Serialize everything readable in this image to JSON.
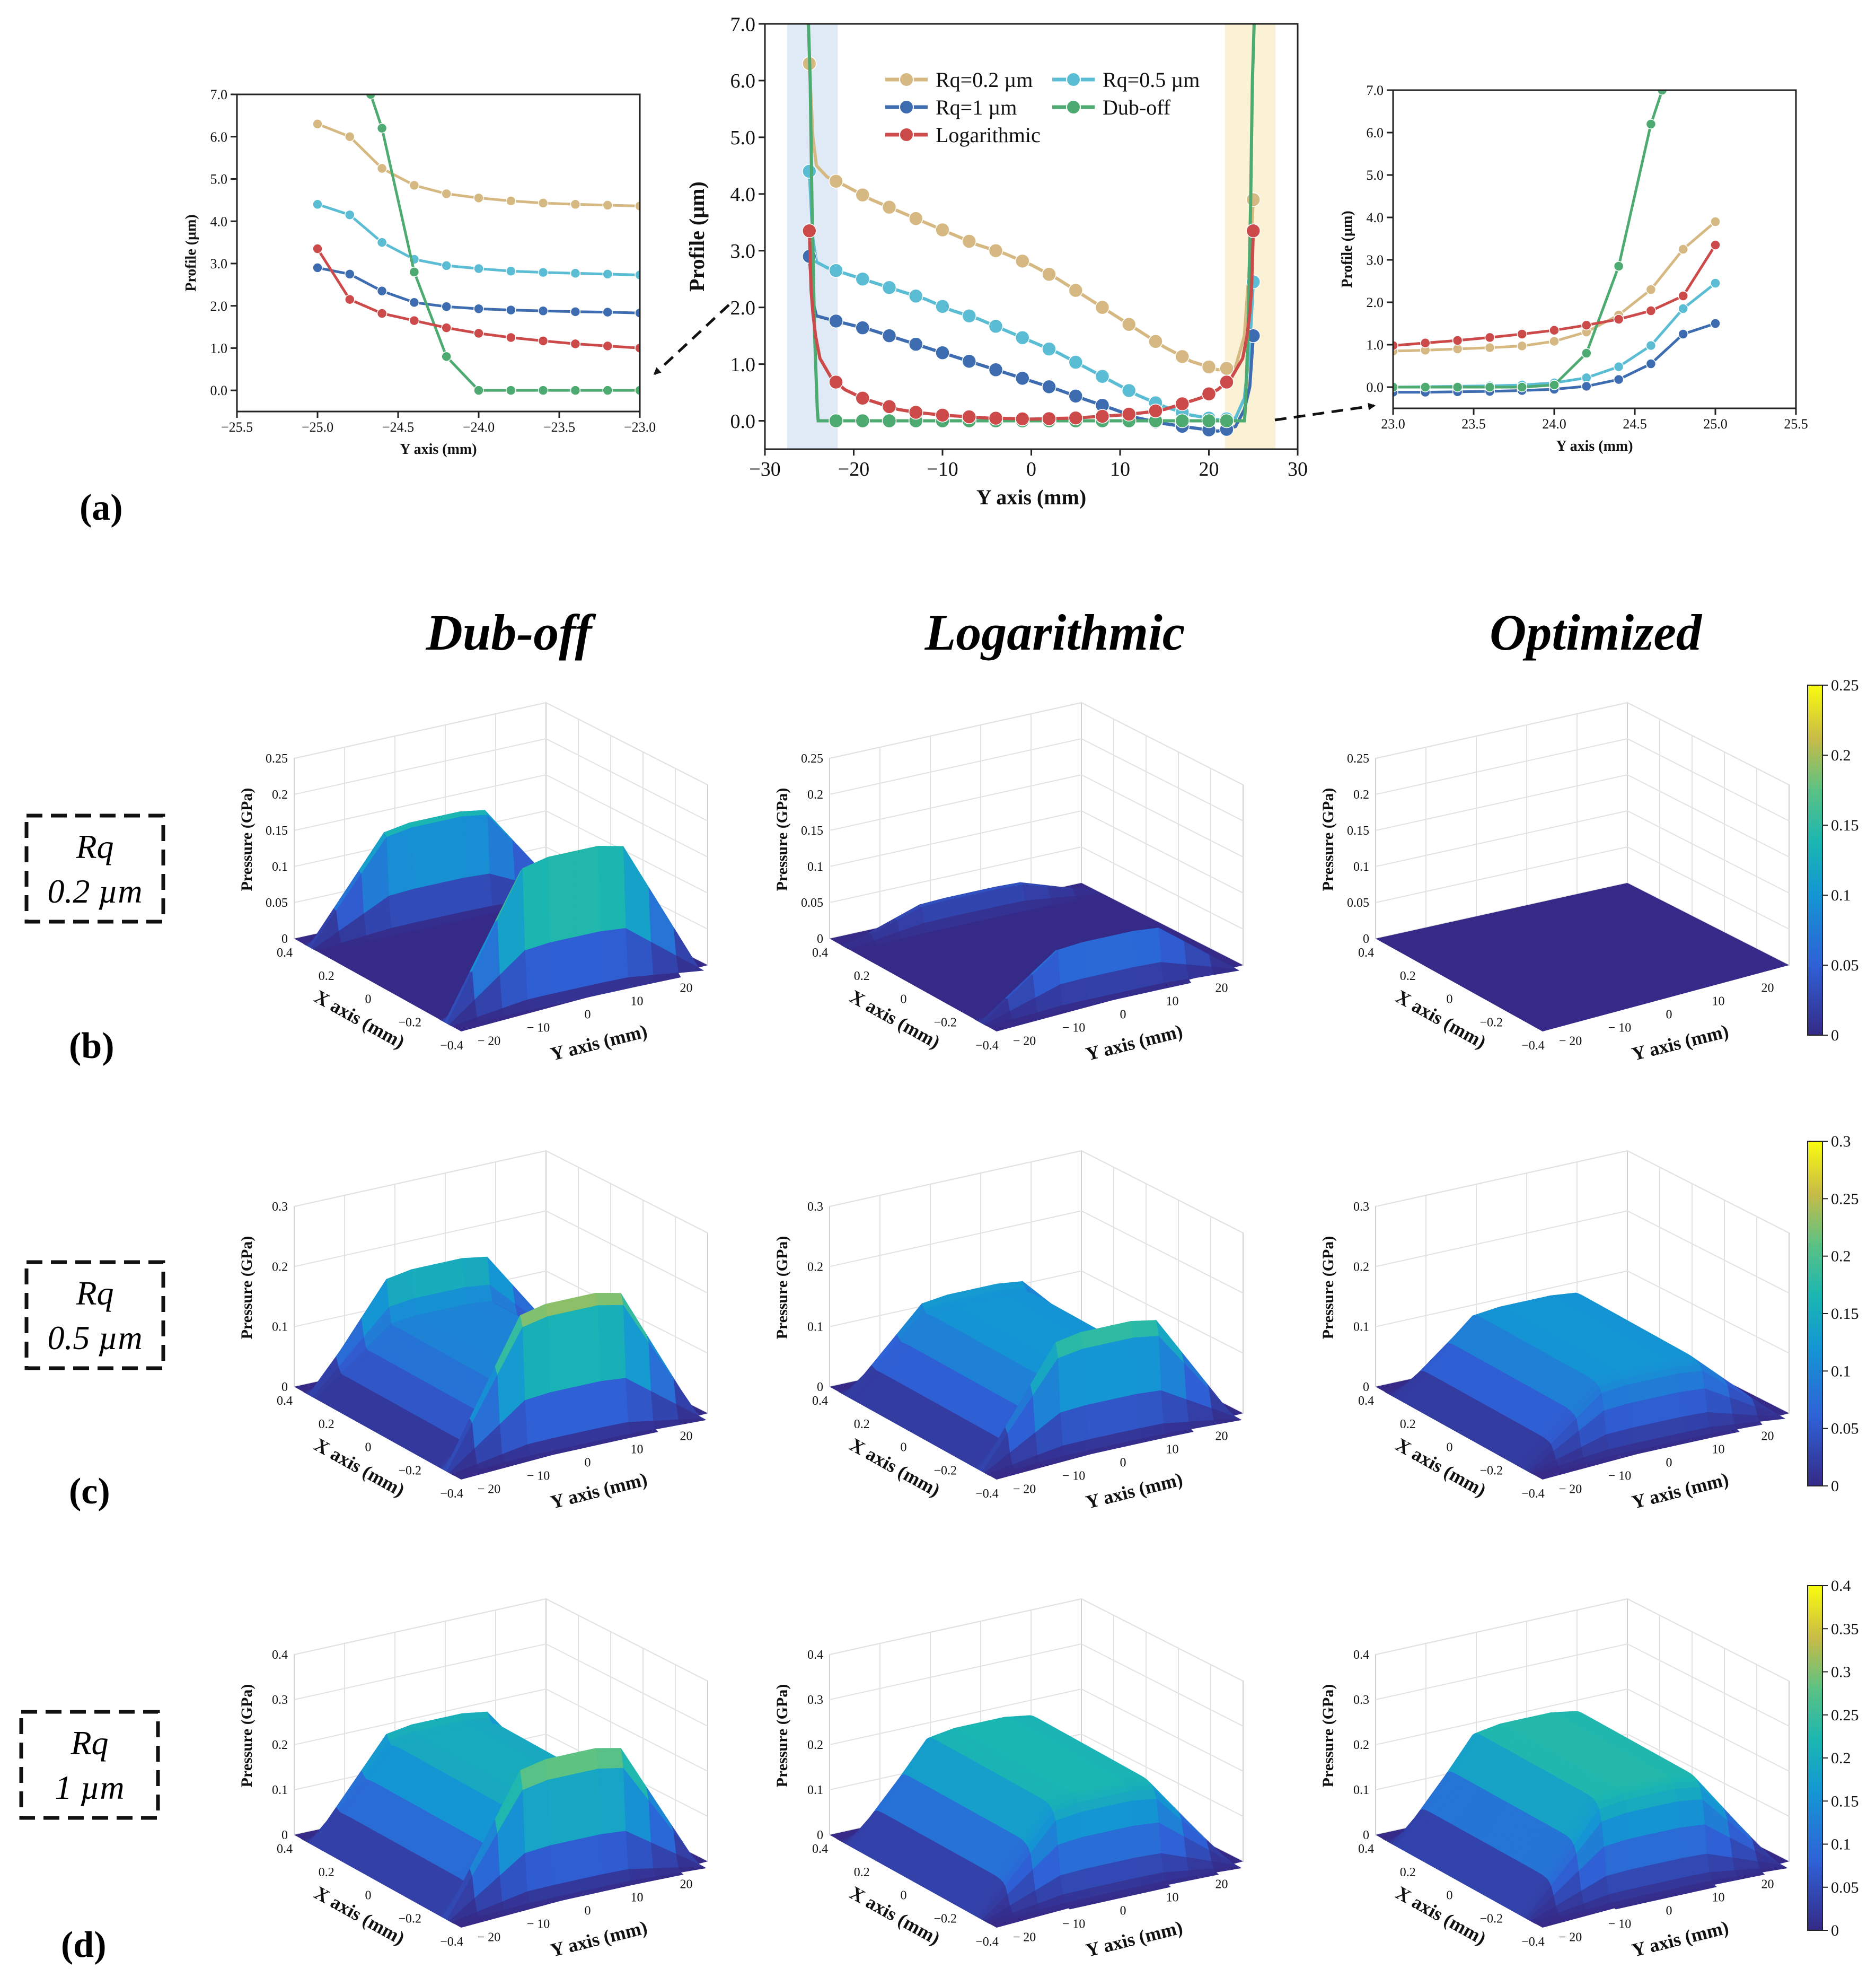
{
  "figure": {
    "panel_labels": [
      "(a)",
      "(b)",
      "(c)",
      "(d)"
    ],
    "column_titles": [
      "Dub-off",
      "Logarithmic",
      "Optimized"
    ],
    "row_labels": [
      {
        "line1": "Rq",
        "line2": "0.2 µm"
      },
      {
        "line1": "Rq",
        "line2": "0.5 µm"
      },
      {
        "line1": "Rq",
        "line2": "1 µm"
      }
    ]
  },
  "chart_data": [
    {
      "id": "main",
      "type": "line",
      "xlabel": "Y axis (mm)",
      "ylabel": "Profile (µm)",
      "xlim": [
        -30,
        30
      ],
      "ylim": [
        -0.5,
        7.0
      ],
      "xticks": [
        -30,
        -20,
        -10,
        0,
        10,
        20,
        30
      ],
      "xticklabels": [
        "−30",
        "−20",
        "−10",
        "0",
        "10",
        "20",
        "30"
      ],
      "yticks": [
        0,
        1,
        2,
        3,
        4,
        5,
        6,
        7
      ],
      "yticklabels": [
        "0.0",
        "1.0",
        "2.0",
        "3.0",
        "4.0",
        "5.0",
        "6.0",
        "7.0"
      ],
      "highlight_ranges": [
        {
          "x": [
            -27.5,
            -21.8
          ],
          "color": "#dce8f5"
        },
        {
          "x": [
            21.8,
            27.5
          ],
          "color": "#fbefd0"
        }
      ],
      "legend": [
        {
          "name": "Rq=0.2 µm",
          "color": "#d6b982"
        },
        {
          "name": "Rq=0.5 µm",
          "color": "#5bbdd4"
        },
        {
          "name": "Rq=1 µm",
          "color": "#3d6db0"
        },
        {
          "name": "Dub-off",
          "color": "#4daa70"
        },
        {
          "name": "Logarithmic",
          "color": "#cc4a4a"
        }
      ],
      "series": [
        {
          "name": "Rq=0.2 µm",
          "color": "#d6b982",
          "x": [
            -25,
            -24.6,
            -24.2,
            -23,
            -21,
            -18,
            -15,
            -12,
            -9,
            -6,
            -3,
            0,
            3,
            6,
            9,
            12,
            15,
            18,
            21,
            23,
            24,
            24.6,
            25
          ],
          "y": [
            6.3,
            5.0,
            4.5,
            4.3,
            4.15,
            3.9,
            3.7,
            3.5,
            3.3,
            3.1,
            2.95,
            2.75,
            2.5,
            2.2,
            1.9,
            1.6,
            1.3,
            1.05,
            0.9,
            0.95,
            1.5,
            2.8,
            3.9
          ],
          "markers_x": [
            -25,
            -22,
            -19,
            -16,
            -13,
            -10,
            -7,
            -4,
            -1,
            2,
            5,
            8,
            11,
            14,
            17,
            20,
            22,
            25
          ]
        },
        {
          "name": "Rq=0.5 µm",
          "color": "#5bbdd4",
          "x": [
            -25,
            -24.6,
            -24.2,
            -23,
            -21,
            -18,
            -15,
            -12,
            -9,
            -6,
            -3,
            0,
            3,
            6,
            9,
            12,
            15,
            18,
            21,
            23,
            24,
            24.6,
            25
          ],
          "y": [
            4.4,
            3.2,
            2.8,
            2.7,
            2.6,
            2.45,
            2.3,
            2.15,
            1.95,
            1.8,
            1.6,
            1.4,
            1.2,
            0.95,
            0.7,
            0.45,
            0.25,
            0.1,
            0.02,
            0.05,
            0.4,
            1.3,
            2.45
          ],
          "markers_x": [
            -25,
            -22,
            -19,
            -16,
            -13,
            -10,
            -7,
            -4,
            -1,
            2,
            5,
            8,
            11,
            14,
            17,
            20,
            22,
            25
          ]
        },
        {
          "name": "Rq=1 µm",
          "color": "#3d6db0",
          "x": [
            -25,
            -24.6,
            -24.2,
            -23,
            -21,
            -18,
            -15,
            -12,
            -9,
            -6,
            -3,
            0,
            3,
            6,
            9,
            12,
            15,
            18,
            21,
            22,
            23,
            24,
            24.6,
            25
          ],
          "y": [
            2.9,
            2.1,
            1.85,
            1.8,
            1.72,
            1.6,
            1.45,
            1.3,
            1.15,
            1.0,
            0.85,
            0.7,
            0.55,
            0.38,
            0.22,
            0.05,
            -0.05,
            -0.12,
            -0.18,
            -0.15,
            -0.1,
            0.2,
            0.6,
            1.5
          ],
          "markers_x": [
            -25,
            -22,
            -19,
            -16,
            -13,
            -10,
            -7,
            -4,
            -1,
            2,
            5,
            8,
            11,
            14,
            17,
            20,
            22,
            25
          ]
        },
        {
          "name": "Dub-off",
          "color": "#4daa70",
          "x": [
            -25.1,
            -24.9,
            -24.7,
            -24.4,
            -24.1,
            -24.0,
            -20,
            -10,
            0,
            10,
            20,
            24.0,
            24.1,
            24.4,
            24.7,
            24.9,
            25.1
          ],
          "y": [
            7.0,
            6.0,
            3.8,
            1.5,
            0.2,
            0.0,
            0.0,
            0.0,
            0.0,
            0.0,
            0.0,
            0.0,
            0.2,
            1.5,
            3.8,
            6.0,
            7.0
          ],
          "markers_x": [
            -22,
            -19,
            -16,
            -13,
            -10,
            -7,
            -4,
            -1,
            2,
            5,
            8,
            11,
            14,
            17,
            20,
            22
          ]
        },
        {
          "name": "Logarithmic",
          "color": "#cc4a4a",
          "x": [
            -25,
            -24.8,
            -24.6,
            -24.3,
            -23.8,
            -22.5,
            -21,
            -19,
            -17,
            -15,
            -13,
            -10,
            -5,
            0,
            5,
            10,
            13,
            15,
            17,
            19,
            21,
            22.5,
            23.8,
            24.3,
            24.6,
            24.8,
            25
          ],
          "y": [
            3.35,
            2.3,
            1.9,
            1.5,
            1.1,
            0.75,
            0.55,
            0.4,
            0.3,
            0.2,
            0.15,
            0.1,
            0.05,
            0.03,
            0.05,
            0.1,
            0.15,
            0.2,
            0.3,
            0.4,
            0.55,
            0.75,
            1.1,
            1.5,
            1.9,
            2.3,
            3.35
          ],
          "markers_x": [
            -25,
            -22,
            -19,
            -16,
            -13,
            -10,
            -7,
            -4,
            -1,
            2,
            5,
            8,
            11,
            14,
            17,
            20,
            22,
            25
          ]
        }
      ]
    },
    {
      "id": "inset-left",
      "type": "line",
      "xlabel": "Y axis (mm)",
      "ylabel": "Profile (µm)",
      "xlim": [
        -25.5,
        -23.0
      ],
      "ylim": [
        -0.5,
        7.0
      ],
      "xticks": [
        -25.5,
        -25.0,
        -24.5,
        -24.0,
        -23.5,
        -23.0
      ],
      "xticklabels": [
        "−25.5",
        "−25.0",
        "−24.5",
        "−24.0",
        "−23.5",
        "−23.0"
      ],
      "yticks": [
        0,
        1,
        2,
        3,
        4,
        5,
        6,
        7
      ],
      "yticklabels": [
        "0.0",
        "1.0",
        "2.0",
        "3.0",
        "4.0",
        "5.0",
        "6.0",
        "7.0"
      ],
      "series": [
        {
          "name": "Rq=0.2 µm",
          "color": "#d6b982",
          "x": [
            -25.0,
            -24.8,
            -24.6,
            -24.4,
            -24.2,
            -24.0,
            -23.8,
            -23.6,
            -23.4,
            -23.2,
            -23.0
          ],
          "y": [
            6.3,
            6.0,
            5.25,
            4.85,
            4.65,
            4.55,
            4.48,
            4.43,
            4.4,
            4.38,
            4.36
          ]
        },
        {
          "name": "Rq=0.5 µm",
          "color": "#5bbdd4",
          "x": [
            -25.0,
            -24.8,
            -24.6,
            -24.4,
            -24.2,
            -24.0,
            -23.8,
            -23.6,
            -23.4,
            -23.2,
            -23.0
          ],
          "y": [
            4.4,
            4.15,
            3.5,
            3.1,
            2.95,
            2.88,
            2.82,
            2.79,
            2.77,
            2.75,
            2.73
          ]
        },
        {
          "name": "Rq=1 µm",
          "color": "#3d6db0",
          "x": [
            -25.0,
            -24.8,
            -24.6,
            -24.4,
            -24.2,
            -24.0,
            -23.8,
            -23.6,
            -23.4,
            -23.2,
            -23.0
          ],
          "y": [
            2.9,
            2.75,
            2.35,
            2.08,
            1.98,
            1.93,
            1.9,
            1.88,
            1.86,
            1.85,
            1.83
          ]
        },
        {
          "name": "Dub-off",
          "color": "#4daa70",
          "x": [
            -24.67,
            -24.6,
            -24.4,
            -24.2,
            -24.0,
            -23.8,
            -23.6,
            -23.4,
            -23.2,
            -23.0
          ],
          "y": [
            7.0,
            6.2,
            2.8,
            0.8,
            0.0,
            0.0,
            0.0,
            0.0,
            0.0,
            0.0
          ]
        },
        {
          "name": "Logarithmic",
          "color": "#cc4a4a",
          "x": [
            -25.0,
            -24.8,
            -24.6,
            -24.4,
            -24.2,
            -24.0,
            -23.8,
            -23.6,
            -23.4,
            -23.2,
            -23.0
          ],
          "y": [
            3.35,
            2.15,
            1.82,
            1.65,
            1.48,
            1.35,
            1.25,
            1.17,
            1.1,
            1.05,
            1.0
          ]
        }
      ]
    },
    {
      "id": "inset-right",
      "type": "line",
      "xlabel": "Y axis (mm)",
      "ylabel": "Profile (µm)",
      "xlim": [
        23.0,
        25.5
      ],
      "ylim": [
        -0.5,
        7.0
      ],
      "xticks": [
        23.0,
        23.5,
        24.0,
        24.5,
        25.0,
        25.5
      ],
      "xticklabels": [
        "23.0",
        "23.5",
        "24.0",
        "24.5",
        "25.0",
        "25.5"
      ],
      "yticks": [
        0,
        1,
        2,
        3,
        4,
        5,
        6,
        7
      ],
      "yticklabels": [
        "0.0",
        "1.0",
        "2.0",
        "3.0",
        "4.0",
        "5.0",
        "6.0",
        "7.0"
      ],
      "series": [
        {
          "name": "Rq=0.2 µm",
          "color": "#d6b982",
          "x": [
            23.0,
            23.2,
            23.4,
            23.6,
            23.8,
            24.0,
            24.2,
            24.4,
            24.6,
            24.8,
            25.0
          ],
          "y": [
            0.85,
            0.87,
            0.9,
            0.93,
            0.97,
            1.08,
            1.3,
            1.7,
            2.3,
            3.25,
            3.9
          ]
        },
        {
          "name": "Rq=0.5 µm",
          "color": "#5bbdd4",
          "x": [
            23.0,
            23.2,
            23.4,
            23.6,
            23.8,
            24.0,
            24.2,
            24.4,
            24.6,
            24.8,
            25.0
          ],
          "y": [
            0.0,
            0.01,
            0.02,
            0.03,
            0.05,
            0.1,
            0.22,
            0.48,
            0.98,
            1.85,
            2.45
          ]
        },
        {
          "name": "Rq=1 µm",
          "color": "#3d6db0",
          "x": [
            23.0,
            23.2,
            23.4,
            23.6,
            23.8,
            24.0,
            24.2,
            24.4,
            24.6,
            24.8,
            25.0
          ],
          "y": [
            -0.12,
            -0.12,
            -0.11,
            -0.1,
            -0.08,
            -0.05,
            0.02,
            0.18,
            0.55,
            1.25,
            1.5
          ]
        },
        {
          "name": "Dub-off",
          "color": "#4daa70",
          "x": [
            23.0,
            23.2,
            23.4,
            23.6,
            23.8,
            24.0,
            24.2,
            24.4,
            24.6,
            24.67
          ],
          "y": [
            0.0,
            0.0,
            0.0,
            0.0,
            0.0,
            0.05,
            0.8,
            2.85,
            6.2,
            7.0
          ]
        },
        {
          "name": "Logarithmic",
          "color": "#cc4a4a",
          "x": [
            23.0,
            23.2,
            23.4,
            23.6,
            23.8,
            24.0,
            24.2,
            24.4,
            24.6,
            24.8,
            25.0
          ],
          "y": [
            0.98,
            1.04,
            1.1,
            1.17,
            1.25,
            1.34,
            1.46,
            1.6,
            1.8,
            2.15,
            3.35
          ]
        }
      ]
    },
    {
      "id": "pressure-surfaces",
      "type": "heatmap",
      "xlabel": "X axis (mm)",
      "ylabel": "Y axis (mm)",
      "zlabel": "Pressure (GPa)",
      "x_ticks": [
        0.4,
        0.2,
        0,
        -0.2,
        -0.4
      ],
      "x_ticklabels": [
        "0.4",
        "0.2",
        "0",
        "−0.2",
        "−0.4"
      ],
      "y_ticks": [
        -20,
        -10,
        0,
        10,
        20
      ],
      "y_ticklabels": [
        "− 20",
        "− 10",
        "0",
        "10",
        "20"
      ],
      "rows": [
        {
          "rq": "0.2 µm",
          "zmax": 0.25,
          "zticks": [
            0,
            0.05,
            0.1,
            0.15,
            0.2,
            0.25
          ],
          "zticklabels": [
            "0",
            "0.05",
            "0.1",
            "0.15",
            "0.2",
            "0.25"
          ],
          "colorbar_ticklabels": [
            "0",
            "0.05",
            "0.1",
            "0.15",
            "0.2",
            "0.25"
          ],
          "cells": [
            {
              "profile": "Dub-off",
              "peak_left": 0.155,
              "peak_right": 0.22,
              "plateau": 0.0
            },
            {
              "profile": "Logarithmic",
              "peak_left": 0.04,
              "peak_right": 0.09,
              "plateau": 0.0
            },
            {
              "profile": "Optimized",
              "peak_left": 0.0,
              "peak_right": 0.0,
              "plateau": 0.0
            }
          ]
        },
        {
          "rq": "0.5 µm",
          "zmax": 0.3,
          "zticks": [
            0,
            0.1,
            0.2,
            0.3
          ],
          "zticklabels": [
            "0",
            "0.1",
            "0.2",
            "0.3"
          ],
          "colorbar_ticklabels": [
            "0",
            "0.05",
            "0.1",
            "0.15",
            "0.2",
            "0.25",
            "0.3"
          ],
          "cells": [
            {
              "profile": "Dub-off",
              "peak_left": 0.215,
              "peak_right": 0.29,
              "plateau": 0.1
            },
            {
              "profile": "Logarithmic",
              "peak_left": 0.17,
              "peak_right": 0.24,
              "plateau": 0.12
            },
            {
              "profile": "Optimized",
              "peak_left": 0.12,
              "peak_right": 0.14,
              "plateau": 0.12
            }
          ]
        },
        {
          "rq": "1 µm",
          "zmax": 0.4,
          "zticks": [
            0,
            0.1,
            0.2,
            0.3,
            0.4
          ],
          "zticklabels": [
            "0",
            "0.1",
            "0.2",
            "0.3",
            "0.4"
          ],
          "colorbar_ticklabels": [
            "0",
            "0.05",
            "0.1",
            "0.15",
            "0.2",
            "0.25",
            "0.3",
            "0.35",
            "0.4"
          ],
          "cells": [
            {
              "profile": "Dub-off",
              "peak_left": 0.28,
              "peak_right": 0.38,
              "plateau": 0.2
            },
            {
              "profile": "Logarithmic",
              "peak_left": 0.21,
              "peak_right": 0.25,
              "plateau": 0.22
            },
            {
              "profile": "Optimized",
              "peak_left": 0.21,
              "peak_right": 0.25,
              "plateau": 0.23
            }
          ]
        }
      ]
    }
  ]
}
